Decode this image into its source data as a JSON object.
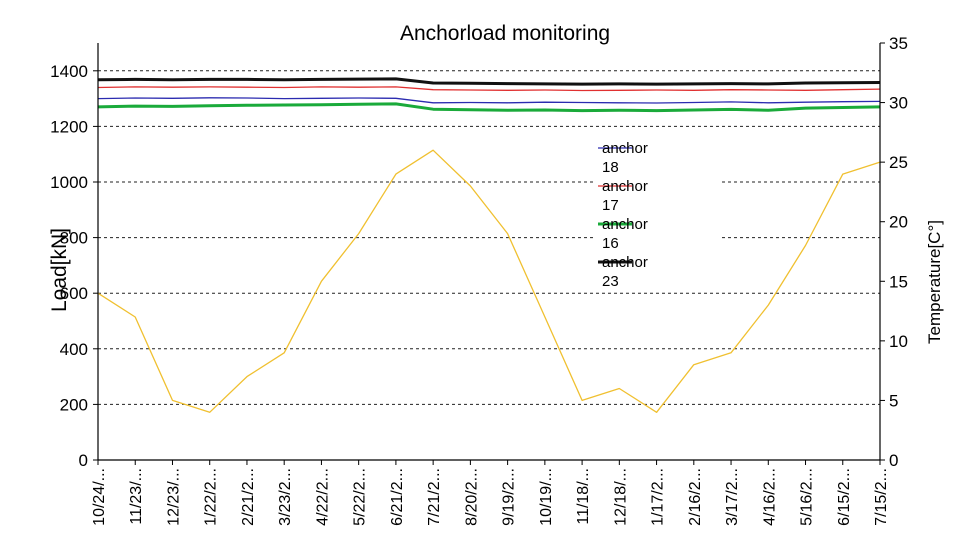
{
  "chart_data": {
    "type": "line",
    "title": "Anchorload monitoring",
    "ylabel": "Load[kN]",
    "y2label": "Temperature[C°]",
    "ylim": [
      0,
      1500
    ],
    "y2lim": [
      0,
      35
    ],
    "yticks": [
      0,
      200,
      400,
      600,
      800,
      1000,
      1200,
      1400
    ],
    "y2ticks": [
      0,
      5,
      10,
      15,
      20,
      25,
      30,
      35
    ],
    "grid": "horizontal dashed",
    "legend_position": "center-right",
    "x_tick_labels": [
      "10/24/...",
      "11/23/...",
      "12/23/...",
      "1/22/2...",
      "2/21/2...",
      "3/23/2...",
      "4/22/2...",
      "5/22/2...",
      "6/21/2...",
      "7/21/2...",
      "8/20/2...",
      "9/19/2...",
      "10/19/...",
      "11/18/...",
      "12/18/...",
      "1/17/2...",
      "2/16/2...",
      "3/17/2...",
      "4/16/2...",
      "5/16/2...",
      "6/15/2...",
      "7/15/2..."
    ],
    "series": [
      {
        "name": "anchor 18",
        "axis": "load",
        "color": "#2b2bb0",
        "width": 1.3,
        "values": [
          1300,
          1302,
          1301,
          1303,
          1302,
          1300,
          1301,
          1302,
          1301,
          1285,
          1286,
          1285,
          1287,
          1286,
          1285,
          1284,
          1286,
          1288,
          1285,
          1287,
          1289,
          1290
        ]
      },
      {
        "name": "anchor 17",
        "axis": "load",
        "color": "#e03030",
        "width": 1.3,
        "values": [
          1340,
          1342,
          1341,
          1342,
          1341,
          1340,
          1342,
          1341,
          1342,
          1332,
          1331,
          1330,
          1331,
          1329,
          1330,
          1331,
          1330,
          1332,
          1331,
          1330,
          1332,
          1334
        ]
      },
      {
        "name": "anchor 16",
        "axis": "load",
        "color": "#1aaa3a",
        "width": 3,
        "values": [
          1270,
          1273,
          1272,
          1274,
          1276,
          1277,
          1278,
          1280,
          1281,
          1262,
          1260,
          1258,
          1259,
          1257,
          1258,
          1257,
          1259,
          1261,
          1258,
          1266,
          1268,
          1270
        ]
      },
      {
        "name": "anchor 23",
        "axis": "load",
        "color": "#111111",
        "width": 3,
        "values": [
          1368,
          1369,
          1368,
          1369,
          1369,
          1368,
          1369,
          1370,
          1371,
          1356,
          1355,
          1354,
          1353,
          1352,
          1353,
          1352,
          1353,
          1354,
          1353,
          1356,
          1357,
          1358
        ]
      },
      {
        "name": "",
        "axis": "temperature",
        "color": "#f0c030",
        "width": 1.3,
        "values": [
          14,
          12,
          5,
          4,
          7,
          9,
          15,
          19,
          24,
          26,
          23,
          19,
          12,
          5,
          6,
          4,
          8,
          9,
          13,
          18,
          24,
          25
        ]
      }
    ]
  }
}
